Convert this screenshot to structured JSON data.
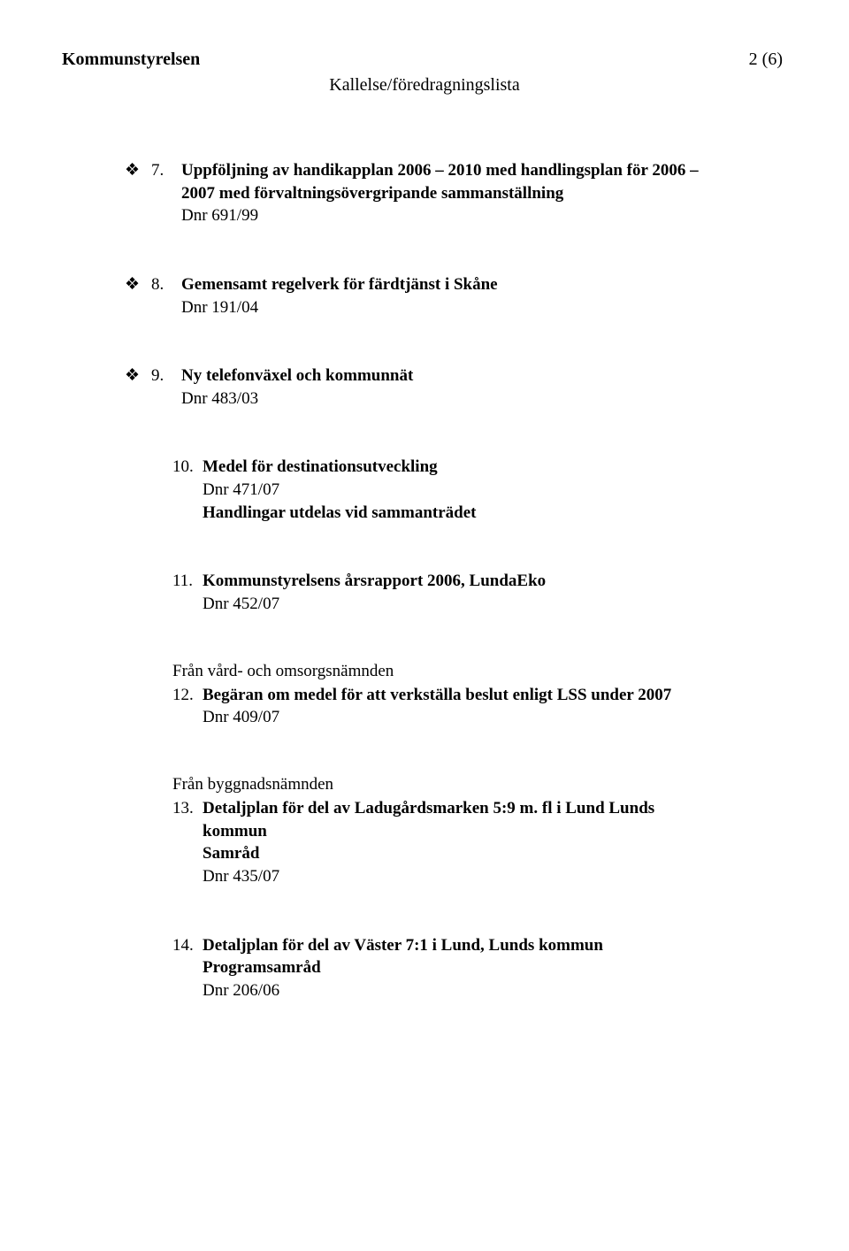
{
  "header": {
    "left": "Kommunstyrelsen",
    "center": "Kallelse/föredragningslista",
    "pagenum": "2 (6)"
  },
  "items": [
    {
      "bullet": "❖",
      "num": "7.",
      "title": "Uppföljning av handikapplan 2006 – 2010 med handlingsplan för 2006 – 2007 med förvaltningsövergripande sammanställning",
      "dnr": "Dnr 691/99"
    },
    {
      "bullet": "❖",
      "num": "8.",
      "title": "Gemensamt regelverk för färdtjänst i Skåne",
      "dnr": "Dnr 191/04"
    },
    {
      "bullet": "❖",
      "num": "9.",
      "title": "Ny telefonväxel och kommunnät",
      "dnr": "Dnr 483/03"
    },
    {
      "num": "10.",
      "title": "Medel för destinationsutveckling",
      "dnr": "Dnr 471/07",
      "extra": "Handlingar utdelas vid sammanträdet"
    },
    {
      "num": "11.",
      "title": "Kommunstyrelsens årsrapport 2006, LundaEko",
      "dnr": "Dnr 452/07"
    },
    {
      "source": "Från vård- och omsorgsnämnden",
      "num": "12.",
      "title": "Begäran om medel för att verkställa beslut enligt LSS under 2007",
      "dnr": "Dnr 409/07"
    },
    {
      "source": "Från byggnadsnämnden",
      "num": "13.",
      "title": "Detaljplan för del av Ladugårdsmarken 5:9 m. fl i Lund Lunds kommun",
      "subtitle": "Samråd",
      "dnr": "Dnr 435/07"
    },
    {
      "num": "14.",
      "title": "Detaljplan för del av Väster 7:1 i Lund, Lunds kommun",
      "subtitle": "Programsamråd",
      "dnr": "Dnr 206/06"
    }
  ]
}
